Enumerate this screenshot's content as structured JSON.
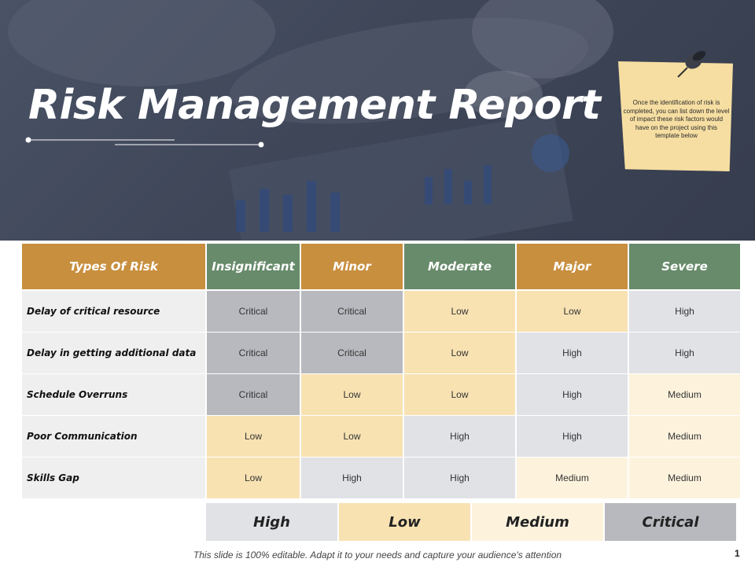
{
  "header": {
    "title": "Risk Management Report",
    "note": "Once the identification of risk is completed, you can list down the level of impact these risk factors would have on the project using this template below"
  },
  "table": {
    "columns": [
      "Types Of Risk",
      "Insignificant",
      "Minor",
      "Moderate",
      "Major",
      "Severe"
    ],
    "rows": [
      {
        "label": "Delay of critical resource",
        "cells": [
          "Critical",
          "Critical",
          "Low",
          "Low",
          "High"
        ]
      },
      {
        "label": "Delay in getting additional  data",
        "cells": [
          "Critical",
          "Critical",
          "Low",
          "High",
          "High"
        ]
      },
      {
        "label": "Schedule Overruns",
        "cells": [
          "Critical",
          "Low",
          "Low",
          "High",
          "Medium"
        ]
      },
      {
        "label": "Poor Communication",
        "cells": [
          "Low",
          "Low",
          "High",
          "High",
          "Medium"
        ]
      },
      {
        "label": "Skills Gap",
        "cells": [
          "Low",
          "High",
          "High",
          "Medium",
          "Medium"
        ]
      }
    ]
  },
  "legend": [
    "High",
    "Low",
    "Medium",
    "Critical"
  ],
  "colors": {
    "header_orange": "#c88f3f",
    "header_green": "#688b6b",
    "critical": "#b7b9be",
    "low": "#f8e2b2",
    "high": "#e1e2e6",
    "medium": "#fdf3dd"
  },
  "footer": {
    "text": "This slide is 100% editable. Adapt it to your needs and capture your audience's attention",
    "page": "1"
  }
}
